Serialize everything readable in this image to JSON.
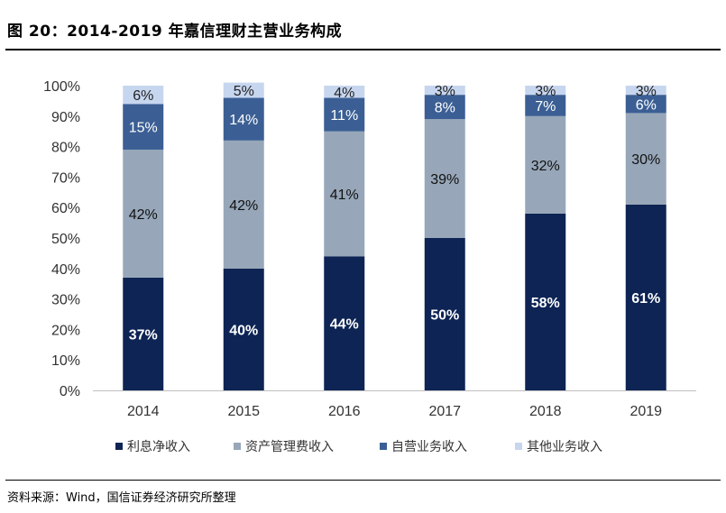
{
  "header": {
    "title": "图 20：2014-2019 年嘉信理财主营业务构成"
  },
  "footer": {
    "source": "资料来源：Wind，国信证券经济研究所整理"
  },
  "chart_data": {
    "type": "bar",
    "stacked": true,
    "percent_stacked": true,
    "categories": [
      "2014",
      "2015",
      "2016",
      "2017",
      "2018",
      "2019"
    ],
    "series": [
      {
        "name": "利息净收入",
        "values": [
          37,
          40,
          44,
          50,
          58,
          61
        ],
        "color": "#0d2454",
        "label_color": "#ffffff",
        "label_bold": true
      },
      {
        "name": "资产管理费收入",
        "values": [
          42,
          42,
          41,
          39,
          32,
          30
        ],
        "color": "#97a7b9",
        "label_color": "#111111",
        "label_bold": false
      },
      {
        "name": "自营业务收入",
        "values": [
          15,
          14,
          11,
          8,
          7,
          6
        ],
        "color": "#3b5f94",
        "label_color": "#ffffff",
        "label_bold": false
      },
      {
        "name": "其他业务收入",
        "values": [
          6,
          5,
          4,
          3,
          3,
          3
        ],
        "color": "#c7d6ef",
        "label_color": "#222222",
        "label_bold": false
      }
    ],
    "data_labels": [
      [
        "37%",
        "40%",
        "44%",
        "50%",
        "58%",
        "61%"
      ],
      [
        "42%",
        "42%",
        "41%",
        "39%",
        "32%",
        "30%"
      ],
      [
        "15%",
        "14%",
        "11%",
        "8%",
        "7%",
        "6%"
      ],
      [
        "6%",
        "5%",
        "4%",
        "3%",
        "3%",
        "3%"
      ]
    ],
    "yticks": [
      "0%",
      "10%",
      "20%",
      "30%",
      "40%",
      "50%",
      "60%",
      "70%",
      "80%",
      "90%",
      "100%"
    ],
    "ylim": [
      0,
      100
    ],
    "grid": false,
    "legend_position": "bottom"
  }
}
